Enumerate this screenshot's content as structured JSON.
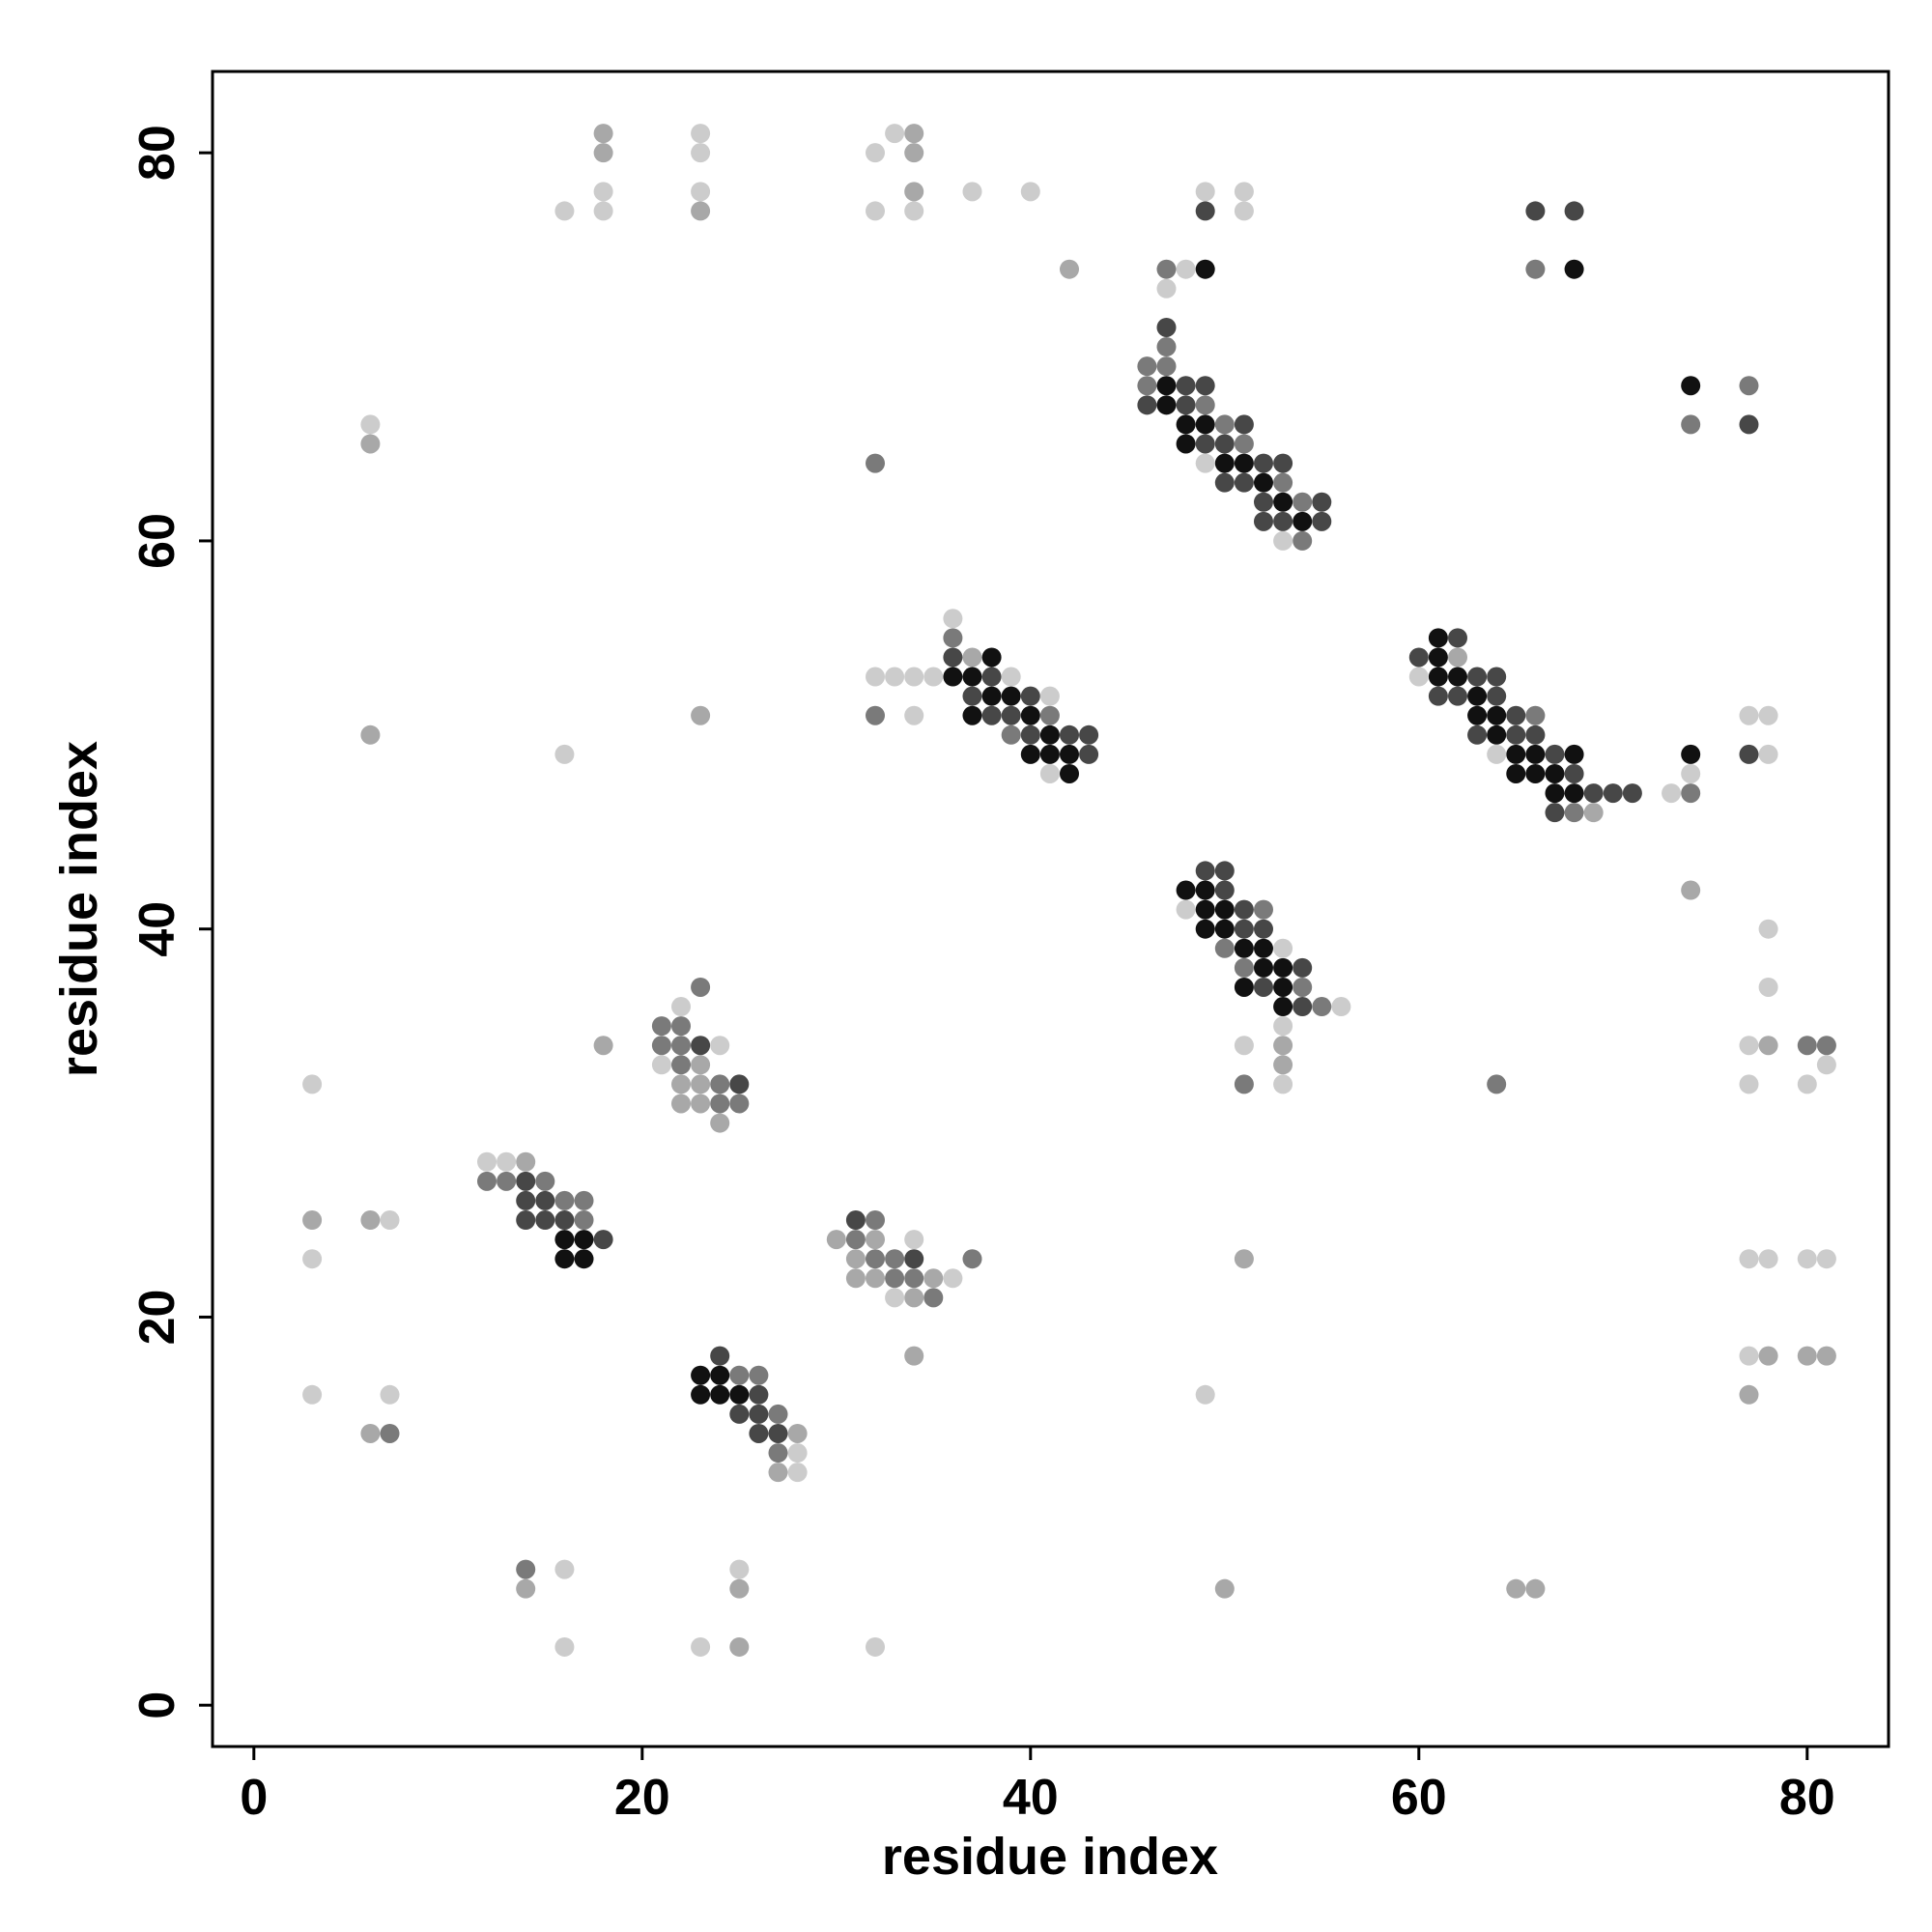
{
  "chart_data": {
    "type": "scatter",
    "x_label": "residue index",
    "y_label": "residue index",
    "xlim": [
      -2.13,
      84.19
    ],
    "ylim": [
      -2.13,
      84.19
    ],
    "xticks": [
      0,
      20,
      40,
      60,
      80
    ],
    "yticks": [
      0,
      20,
      40,
      60,
      80
    ],
    "series": [
      {
        "color": "#111111",
        "x": [
          49,
          68,
          47,
          74,
          47,
          48,
          49,
          48,
          50,
          51,
          52,
          53,
          54,
          61,
          38,
          61,
          36,
          37,
          61,
          62,
          38,
          39,
          63,
          37,
          40,
          63,
          64,
          41,
          64,
          40,
          41,
          42,
          65,
          66,
          68,
          74,
          42,
          65,
          66,
          67,
          67,
          68,
          48,
          49,
          49,
          50,
          49,
          50,
          51,
          52,
          52,
          53,
          51,
          53,
          53,
          16,
          17,
          16,
          17,
          23,
          24,
          23,
          24,
          25
        ],
        "values": [
          74,
          74,
          68,
          68,
          67,
          66,
          66,
          65,
          64,
          64,
          63,
          62,
          61,
          55,
          54,
          54,
          53,
          53,
          53,
          53,
          52,
          52,
          52,
          51,
          51,
          51,
          51,
          50,
          50,
          49,
          49,
          49,
          49,
          49,
          49,
          49,
          48,
          48,
          48,
          48,
          47,
          47,
          42,
          42,
          41,
          41,
          40,
          40,
          39,
          39,
          38,
          38,
          37,
          37,
          36,
          24,
          24,
          23,
          23,
          17,
          17,
          16,
          16,
          16
        ]
      },
      {
        "color": "#474747",
        "x": [
          49,
          66,
          68,
          47,
          48,
          49,
          46,
          48,
          51,
          77,
          49,
          50,
          52,
          53,
          50,
          51,
          52,
          55,
          52,
          53,
          55,
          62,
          36,
          60,
          38,
          63,
          64,
          37,
          40,
          61,
          62,
          64,
          38,
          39,
          65,
          40,
          42,
          43,
          63,
          65,
          66,
          43,
          67,
          77,
          68,
          69,
          70,
          71,
          67,
          49,
          50,
          50,
          51,
          51,
          52,
          54,
          52,
          54,
          23,
          25,
          14,
          14,
          15,
          14,
          15,
          16,
          31,
          18,
          34,
          24,
          26,
          25,
          26,
          26,
          27
        ],
        "values": [
          77,
          77,
          77,
          71,
          68,
          68,
          67,
          67,
          66,
          66,
          65,
          65,
          64,
          64,
          63,
          63,
          62,
          62,
          61,
          61,
          61,
          55,
          54,
          54,
          53,
          53,
          53,
          52,
          52,
          52,
          52,
          52,
          51,
          51,
          51,
          50,
          50,
          50,
          50,
          50,
          50,
          49,
          49,
          49,
          48,
          47,
          47,
          47,
          46,
          43,
          43,
          42,
          41,
          40,
          40,
          38,
          37,
          36,
          34,
          32,
          27,
          26,
          26,
          25,
          25,
          25,
          25,
          24,
          23,
          18,
          16,
          15,
          15,
          14,
          14
        ]
      },
      {
        "color": "#7a7a7a",
        "x": [
          47,
          66,
          47,
          46,
          47,
          46,
          77,
          49,
          50,
          74,
          51,
          32,
          53,
          54,
          54,
          36,
          32,
          41,
          66,
          39,
          74,
          68,
          52,
          50,
          51,
          23,
          54,
          55,
          21,
          22,
          21,
          22,
          80,
          81,
          22,
          24,
          51,
          64,
          24,
          25,
          12,
          13,
          15,
          16,
          17,
          17,
          32,
          31,
          32,
          33,
          37,
          33,
          34,
          35,
          25,
          26,
          27,
          7,
          27,
          14
        ],
        "values": [
          74,
          74,
          70,
          69,
          69,
          68,
          68,
          67,
          66,
          66,
          65,
          64,
          63,
          62,
          60,
          55,
          51,
          51,
          51,
          50,
          47,
          46,
          41,
          39,
          38,
          37,
          37,
          36,
          35,
          35,
          34,
          34,
          34,
          34,
          33,
          32,
          32,
          32,
          31,
          31,
          27,
          27,
          27,
          26,
          26,
          25,
          25,
          24,
          23,
          23,
          23,
          22,
          22,
          21,
          17,
          17,
          15,
          14,
          13,
          7
        ]
      },
      {
        "color": "#a8a8a8",
        "x": [
          18,
          34,
          18,
          34,
          34,
          23,
          42,
          6,
          37,
          62,
          23,
          6,
          69,
          74,
          18,
          53,
          78,
          23,
          53,
          22,
          23,
          22,
          23,
          24,
          14,
          3,
          6,
          30,
          32,
          31,
          51,
          31,
          32,
          35,
          34,
          34,
          78,
          80,
          81,
          77,
          6,
          28,
          27,
          14,
          25,
          50,
          65,
          66,
          25
        ],
        "values": [
          81,
          81,
          80,
          80,
          78,
          77,
          74,
          65,
          54,
          54,
          51,
          50,
          46,
          42,
          34,
          34,
          34,
          33,
          33,
          32,
          32,
          31,
          31,
          30,
          28,
          25,
          25,
          24,
          24,
          23,
          23,
          22,
          22,
          22,
          21,
          18,
          18,
          18,
          18,
          16,
          14,
          14,
          12,
          6,
          6,
          6,
          6,
          6,
          3
        ]
      },
      {
        "color": "#cccccc",
        "x": [
          23,
          33,
          23,
          32,
          18,
          23,
          37,
          40,
          49,
          51,
          16,
          18,
          32,
          34,
          51,
          48,
          47,
          6,
          49,
          53,
          36,
          32,
          33,
          34,
          35,
          39,
          60,
          41,
          34,
          77,
          78,
          16,
          64,
          78,
          41,
          74,
          73,
          48,
          78,
          53,
          78,
          22,
          56,
          53,
          24,
          51,
          77,
          21,
          81,
          3,
          53,
          77,
          80,
          12,
          13,
          7,
          34,
          3,
          77,
          78,
          80,
          81,
          36,
          33,
          77,
          3,
          7,
          49,
          28,
          28,
          16,
          25,
          16,
          23,
          32
        ],
        "values": [
          81,
          81,
          80,
          80,
          78,
          78,
          78,
          78,
          78,
          78,
          77,
          77,
          77,
          77,
          77,
          74,
          73,
          66,
          64,
          60,
          56,
          53,
          53,
          53,
          53,
          53,
          53,
          52,
          51,
          51,
          51,
          49,
          49,
          49,
          48,
          48,
          47,
          41,
          40,
          39,
          37,
          36,
          36,
          35,
          34,
          34,
          34,
          33,
          33,
          32,
          32,
          32,
          32,
          28,
          28,
          25,
          24,
          23,
          23,
          23,
          23,
          23,
          22,
          21,
          18,
          16,
          16,
          16,
          13,
          12,
          7,
          7,
          3,
          3,
          3
        ]
      }
    ]
  }
}
